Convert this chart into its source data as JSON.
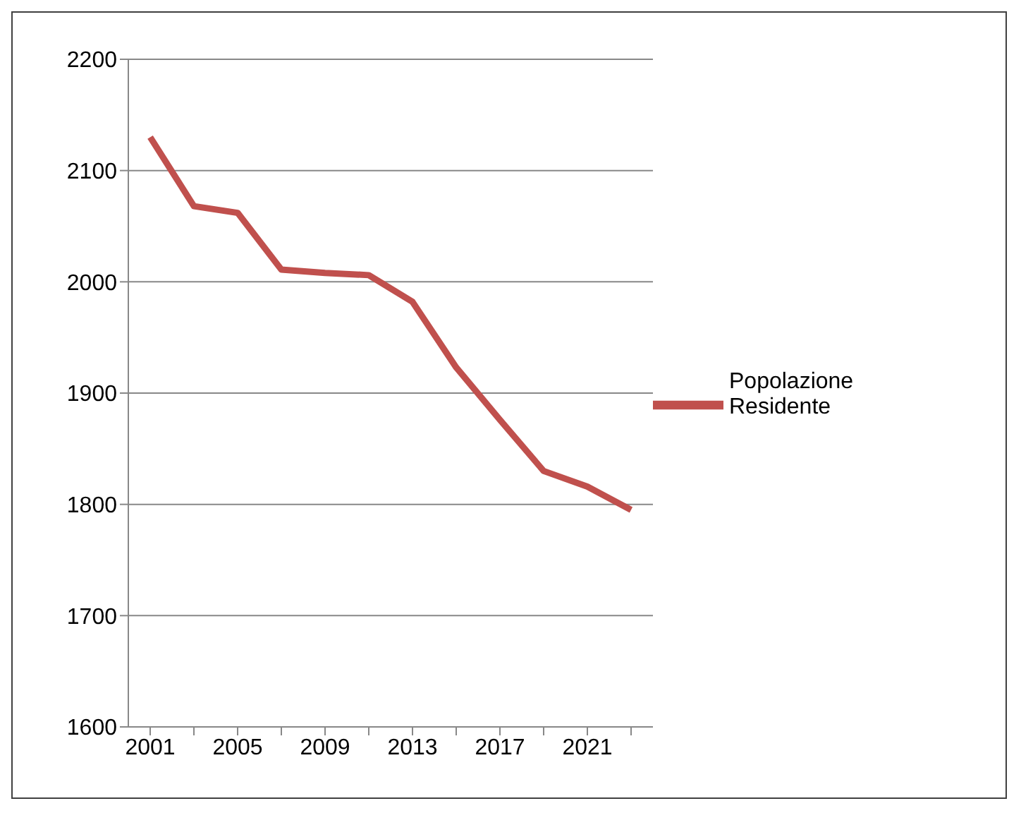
{
  "chart_data": {
    "type": "line",
    "categories": [
      "2001",
      null,
      "2005",
      null,
      "2009",
      null,
      "2013",
      null,
      "2017",
      null,
      "2021",
      null
    ],
    "series": [
      {
        "name": "Popolazione Residente",
        "color": "#c0504d",
        "values": [
          2130,
          2068,
          2062,
          2011,
          2008,
          2006,
          1982,
          1923,
          1876,
          1830,
          1816,
          1795
        ]
      }
    ],
    "ylim": [
      1600,
      2200
    ],
    "yticks": [
      1600,
      1700,
      1800,
      1900,
      2000,
      2100,
      2200
    ],
    "grid": "y",
    "legend": "right",
    "marker": "none",
    "line_style": "solid"
  }
}
